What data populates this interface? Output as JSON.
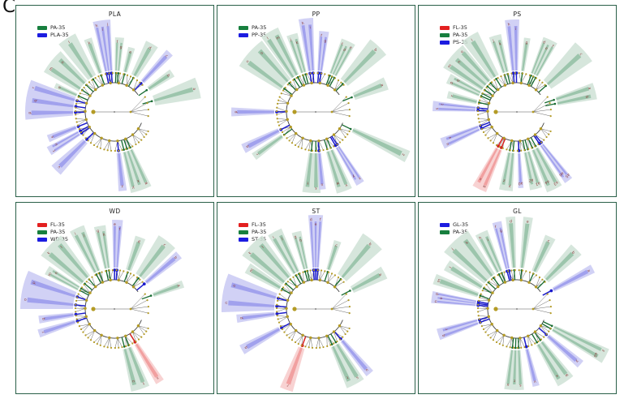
{
  "figure_label": "C",
  "colors": {
    "panel_border": "#2a6049",
    "node": "#b49b25",
    "line": "#3c3c3c",
    "letter": "#8a3838",
    "groups": {
      "green": {
        "legend": "#177f3e",
        "light": "#cfe2d6",
        "mid": "#96c1a6",
        "dark": "#166b30"
      },
      "blue": {
        "legend": "#1c1ce0",
        "light": "#c9c9f3",
        "mid": "#9b9bec",
        "dark": "#1c1ccc"
      },
      "red": {
        "legend": "#e32020",
        "light": "#f7caca",
        "mid": "#f09a9a",
        "dark": "#d42020"
      }
    }
  },
  "chart_data": [
    {
      "type": "cladogram",
      "title": "PLA",
      "legend": [
        {
          "label": "PA-35",
          "group": "green"
        },
        {
          "label": "PLA-35",
          "group": "blue"
        }
      ],
      "wedges": [
        {
          "angle": -8,
          "span": 11,
          "radius": 114,
          "group": "blue",
          "labels": [
            "h",
            "i",
            "j"
          ]
        },
        {
          "angle": -20,
          "span": 6,
          "radius": 96,
          "group": "green",
          "labels": [
            "k"
          ]
        },
        {
          "angle": -33,
          "span": 13,
          "radius": 108,
          "group": "green",
          "labels": [
            "l"
          ]
        },
        {
          "angle": -51,
          "span": 19,
          "radius": 100,
          "group": "green",
          "labels": [
            "m",
            "n"
          ]
        },
        {
          "angle": -66,
          "span": 5,
          "radius": 80,
          "group": "green",
          "labels": [
            "o"
          ]
        },
        {
          "angle": -82,
          "span": 26,
          "radius": 110,
          "group": "blue",
          "labels": [
            "p",
            "q",
            "r"
          ]
        },
        {
          "angle": -112,
          "span": 6,
          "radius": 88,
          "group": "blue",
          "labels": [
            "s"
          ]
        },
        {
          "angle": -121,
          "span": 7,
          "radius": 94,
          "group": "blue",
          "labels": [
            "t",
            "u"
          ]
        },
        {
          "angle": -135,
          "span": 9,
          "radius": 102,
          "group": "blue",
          "labels": [
            "v"
          ]
        },
        {
          "angle": 161,
          "span": 15,
          "radius": 102,
          "group": "green",
          "labels": [
            "w",
            "x",
            "y"
          ]
        },
        {
          "angle": 174,
          "span": 6,
          "radius": 98,
          "group": "blue",
          "labels": [
            "z"
          ]
        },
        {
          "angle": 74,
          "span": 14,
          "radius": 108,
          "group": "green",
          "labels": [
            "a"
          ]
        },
        {
          "angle": 56,
          "span": 7,
          "radius": 86,
          "group": "green",
          "labels": [
            "b"
          ]
        },
        {
          "angle": 43,
          "span": 6,
          "radius": 100,
          "group": "blue",
          "labels": [
            "c"
          ]
        },
        {
          "angle": 29,
          "span": 10,
          "radius": 96,
          "group": "green",
          "labels": [
            "d"
          ]
        },
        {
          "angle": 15,
          "span": 6,
          "radius": 82,
          "group": "green",
          "labels": [
            "e"
          ]
        },
        {
          "angle": 4,
          "span": 7,
          "radius": 92,
          "group": "green",
          "labels": [
            "f",
            "g"
          ]
        }
      ]
    },
    {
      "type": "cladogram",
      "title": "PP",
      "legend": [
        {
          "label": "PA-35",
          "group": "green"
        },
        {
          "label": "PP-35",
          "group": "blue"
        }
      ],
      "wedges": [
        {
          "angle": -6,
          "span": 9,
          "radius": 116,
          "group": "blue",
          "labels": [
            "h",
            "i"
          ]
        },
        {
          "angle": 6,
          "span": 7,
          "radius": 100,
          "group": "blue",
          "labels": [
            "f",
            "g"
          ]
        },
        {
          "angle": -17,
          "span": 8,
          "radius": 100,
          "group": "green",
          "labels": [
            "j",
            "k"
          ]
        },
        {
          "angle": -30,
          "span": 12,
          "radius": 114,
          "group": "green",
          "labels": [
            "l",
            "m"
          ]
        },
        {
          "angle": -48,
          "span": 22,
          "radius": 110,
          "group": "green",
          "labels": [
            "n",
            "o"
          ]
        },
        {
          "angle": -90,
          "span": 6,
          "radius": 104,
          "group": "blue",
          "labels": [
            "p"
          ]
        },
        {
          "angle": -117,
          "span": 7,
          "radius": 100,
          "group": "blue",
          "labels": [
            "q"
          ]
        },
        {
          "angle": -126,
          "span": 6,
          "radius": 94,
          "group": "green",
          "labels": [
            "r"
          ]
        },
        {
          "angle": -177,
          "span": 13,
          "radius": 100,
          "group": "green",
          "labels": [
            "s",
            "t"
          ]
        },
        {
          "angle": 175,
          "span": 5,
          "radius": 96,
          "group": "blue",
          "labels": [
            "u"
          ]
        },
        {
          "angle": 160,
          "span": 11,
          "radius": 104,
          "group": "green",
          "labels": [
            "v",
            "w"
          ]
        },
        {
          "angle": 148,
          "span": 6,
          "radius": 104,
          "group": "blue",
          "labels": [
            "x",
            "y"
          ]
        },
        {
          "angle": 116,
          "span": 7,
          "radius": 126,
          "group": "green",
          "labels": [
            "z"
          ]
        },
        {
          "angle": 25,
          "span": 11,
          "radius": 96,
          "group": "green",
          "labels": [
            "c",
            "d",
            "e"
          ]
        },
        {
          "angle": 44,
          "span": 14,
          "radius": 112,
          "group": "green",
          "labels": [
            "b"
          ]
        },
        {
          "angle": 68,
          "span": 10,
          "radius": 94,
          "group": "green",
          "labels": [
            "a"
          ]
        }
      ]
    },
    {
      "type": "cladogram",
      "title": "PS",
      "legend": [
        {
          "label": "FL-35",
          "group": "red"
        },
        {
          "label": "PA-35",
          "group": "green"
        },
        {
          "label": "PS-35",
          "group": "blue"
        }
      ],
      "wedges": [
        {
          "angle": -3,
          "span": 9,
          "radius": 114,
          "group": "blue",
          "labels": [
            "h",
            "i"
          ]
        },
        {
          "angle": 8,
          "span": 5,
          "radius": 92,
          "group": "green",
          "labels": [
            "g"
          ]
        },
        {
          "angle": -16,
          "span": 9,
          "radius": 98,
          "group": "green",
          "labels": [
            "j",
            "k"
          ]
        },
        {
          "angle": -32,
          "span": 12,
          "radius": 110,
          "group": "green",
          "labels": [
            "l"
          ]
        },
        {
          "angle": -49,
          "span": 20,
          "radius": 106,
          "group": "green",
          "labels": [
            "m",
            "n",
            "o"
          ]
        },
        {
          "angle": -64,
          "span": 8,
          "radius": 94,
          "group": "green",
          "labels": [
            "p",
            "q"
          ]
        },
        {
          "angle": -76,
          "span": 6,
          "radius": 88,
          "group": "green",
          "labels": [
            "r"
          ]
        },
        {
          "angle": -86,
          "span": 7,
          "radius": 104,
          "group": "blue",
          "labels": [
            "s",
            "t"
          ]
        },
        {
          "angle": -113,
          "span": 8,
          "radius": 100,
          "group": "blue",
          "labels": [
            "u",
            "v"
          ]
        },
        {
          "angle": -154,
          "span": 10,
          "radius": 106,
          "group": "red",
          "labels": [
            "w",
            "x"
          ]
        },
        {
          "angle": -172,
          "span": 10,
          "radius": 98,
          "group": "green",
          "labels": [
            "y",
            "z"
          ]
        },
        {
          "angle": 177,
          "span": 4,
          "radius": 94,
          "group": "blue",
          "labels": [
            "a0"
          ]
        },
        {
          "angle": 166,
          "span": 9,
          "radius": 98,
          "group": "green",
          "labels": [
            "a1",
            "a2"
          ]
        },
        {
          "angle": 154,
          "span": 11,
          "radius": 106,
          "group": "green",
          "labels": [
            "a3",
            "a4"
          ]
        },
        {
          "angle": 143,
          "span": 6,
          "radius": 106,
          "group": "blue",
          "labels": [
            "a5",
            "a6"
          ]
        },
        {
          "angle": 25,
          "span": 11,
          "radius": 98,
          "group": "green",
          "labels": [
            "d",
            "e",
            "f"
          ]
        },
        {
          "angle": 48,
          "span": 16,
          "radius": 112,
          "group": "green",
          "labels": [
            "c"
          ]
        },
        {
          "angle": 75,
          "span": 12,
          "radius": 100,
          "group": "green",
          "labels": [
            "a",
            "b"
          ]
        }
      ]
    },
    {
      "type": "cladogram",
      "title": "WD",
      "legend": [
        {
          "label": "FL-35",
          "group": "red"
        },
        {
          "label": "PA-35",
          "group": "green"
        },
        {
          "label": "WD-35",
          "group": "blue"
        }
      ],
      "wedges": [
        {
          "angle": 2,
          "span": 7,
          "radius": 110,
          "group": "blue",
          "labels": [
            "e",
            "f"
          ]
        },
        {
          "angle": -10,
          "span": 8,
          "radius": 104,
          "group": "green",
          "labels": [
            "g",
            "h"
          ]
        },
        {
          "angle": -25,
          "span": 10,
          "radius": 110,
          "group": "green",
          "labels": [
            "i",
            "j"
          ]
        },
        {
          "angle": -45,
          "span": 18,
          "radius": 112,
          "group": "green",
          "labels": [
            "k",
            "l"
          ]
        },
        {
          "angle": -60,
          "span": 7,
          "radius": 96,
          "group": "green",
          "labels": [
            "m",
            "n"
          ]
        },
        {
          "angle": -78,
          "span": 24,
          "radius": 116,
          "group": "blue",
          "labels": [
            "o",
            "p"
          ]
        },
        {
          "angle": -98,
          "span": 6,
          "radius": 94,
          "group": "blue",
          "labels": [
            "q"
          ]
        },
        {
          "angle": -108,
          "span": 6,
          "radius": 98,
          "group": "blue",
          "labels": [
            "r"
          ]
        },
        {
          "angle": 162,
          "span": 13,
          "radius": 104,
          "group": "green",
          "labels": [
            "t",
            "u"
          ]
        },
        {
          "angle": 148,
          "span": 6,
          "radius": 106,
          "group": "red",
          "labels": [
            "s"
          ]
        },
        {
          "angle": 20,
          "span": 8,
          "radius": 94,
          "group": "green",
          "labels": [
            "d"
          ]
        },
        {
          "angle": 38,
          "span": 14,
          "radius": 106,
          "group": "green",
          "labels": [
            "c"
          ]
        },
        {
          "angle": 50,
          "span": 6,
          "radius": 104,
          "group": "blue",
          "labels": [
            "b"
          ]
        },
        {
          "angle": 70,
          "span": 6,
          "radius": 90,
          "group": "green",
          "labels": [
            "a"
          ]
        }
      ]
    },
    {
      "type": "cladogram",
      "title": "ST",
      "legend": [
        {
          "label": "FL-35",
          "group": "red"
        },
        {
          "label": "PA-35",
          "group": "green"
        },
        {
          "label": "ST-35",
          "group": "blue"
        }
      ],
      "wedges": [
        {
          "angle": 0,
          "span": 9,
          "radius": 116,
          "group": "blue",
          "labels": [
            "d",
            "e",
            "f"
          ]
        },
        {
          "angle": -14,
          "span": 7,
          "radius": 98,
          "group": "green",
          "labels": [
            "g",
            "h"
          ]
        },
        {
          "angle": -28,
          "span": 10,
          "radius": 108,
          "group": "green",
          "labels": [
            "i",
            "j"
          ]
        },
        {
          "angle": -45,
          "span": 18,
          "radius": 112,
          "group": "green",
          "labels": [
            "k",
            "l"
          ]
        },
        {
          "angle": -59,
          "span": 8,
          "radius": 98,
          "group": "green",
          "labels": [
            "m"
          ]
        },
        {
          "angle": -80,
          "span": 24,
          "radius": 116,
          "group": "blue",
          "labels": [
            "n",
            "o"
          ]
        },
        {
          "angle": -97,
          "span": 6,
          "radius": 98,
          "group": "blue",
          "labels": [
            "p"
          ]
        },
        {
          "angle": -119,
          "span": 7,
          "radius": 104,
          "group": "blue",
          "labels": [
            "q"
          ]
        },
        {
          "angle": -160,
          "span": 9,
          "radius": 106,
          "group": "red",
          "labels": [
            "r"
          ]
        },
        {
          "angle": 152,
          "span": 13,
          "radius": 105,
          "group": "green",
          "labels": [
            "s",
            "t"
          ]
        },
        {
          "angle": 140,
          "span": 6,
          "radius": 104,
          "group": "blue",
          "labels": [
            "u"
          ]
        },
        {
          "angle": 18,
          "span": 6,
          "radius": 88,
          "group": "green",
          "labels": [
            "c"
          ]
        },
        {
          "angle": 40,
          "span": 16,
          "radius": 110,
          "group": "green",
          "labels": [
            "b"
          ]
        },
        {
          "angle": 62,
          "span": 10,
          "radius": 96,
          "group": "green",
          "labels": [
            "a"
          ]
        }
      ]
    },
    {
      "type": "cladogram",
      "title": "GL",
      "legend": [
        {
          "label": "GL-35",
          "group": "blue"
        },
        {
          "label": "PA-35",
          "group": "green"
        }
      ],
      "wedges": [
        {
          "angle": -4,
          "span": 6,
          "radius": 114,
          "group": "green",
          "labels": [
            "d"
          ]
        },
        {
          "angle": 7,
          "span": 6,
          "radius": 114,
          "group": "green",
          "labels": [
            "e"
          ]
        },
        {
          "angle": -13,
          "span": 6,
          "radius": 110,
          "group": "blue",
          "labels": [
            "f",
            "g"
          ]
        },
        {
          "angle": -25,
          "span": 9,
          "radius": 104,
          "group": "green",
          "labels": [
            "h",
            "i"
          ]
        },
        {
          "angle": -42,
          "span": 20,
          "radius": 114,
          "group": "green",
          "labels": [
            "j",
            "k"
          ]
        },
        {
          "angle": -58,
          "span": 8,
          "radius": 102,
          "group": "green",
          "labels": [
            "l"
          ]
        },
        {
          "angle": -70,
          "span": 7,
          "radius": 108,
          "group": "green",
          "labels": [
            "m"
          ]
        },
        {
          "angle": -82,
          "span": 8,
          "radius": 106,
          "group": "blue",
          "labels": [
            "n",
            "o",
            "p"
          ]
        },
        {
          "angle": -108,
          "span": 8,
          "radius": 102,
          "group": "blue",
          "labels": [
            "q",
            "r"
          ]
        },
        {
          "angle": -178,
          "span": 14,
          "radius": 100,
          "group": "green",
          "labels": [
            "s",
            "t",
            "u"
          ]
        },
        {
          "angle": 166,
          "span": 5,
          "radius": 98,
          "group": "blue",
          "labels": [
            "v"
          ]
        },
        {
          "angle": 146,
          "span": 12,
          "radius": 108,
          "group": "green",
          "labels": [
            "w",
            "x"
          ]
        },
        {
          "angle": 131,
          "span": 6,
          "radius": 104,
          "group": "blue",
          "labels": [
            "y"
          ]
        },
        {
          "angle": 118,
          "span": 9,
          "radius": 124,
          "group": "green",
          "labels": [
            "z",
            "a0"
          ]
        },
        {
          "angle": 25,
          "span": 8,
          "radius": 98,
          "group": "green",
          "labels": [
            "c"
          ]
        },
        {
          "angle": 45,
          "span": 10,
          "radius": 104,
          "group": "green",
          "labels": [
            "b"
          ]
        },
        {
          "angle": 62,
          "span": 6,
          "radius": 106,
          "group": "blue",
          "labels": [
            "a"
          ]
        }
      ]
    }
  ]
}
